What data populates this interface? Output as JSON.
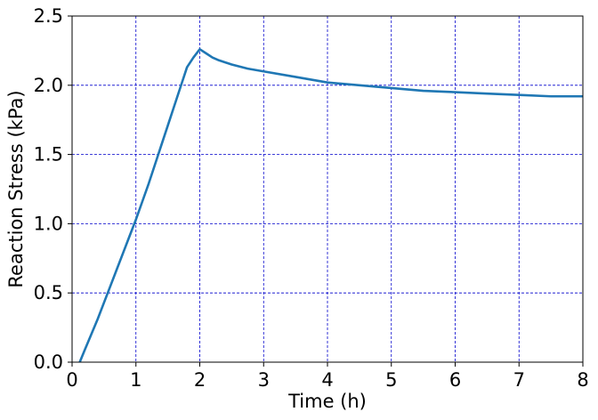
{
  "chart_data": {
    "type": "line",
    "title": "",
    "xlabel": "Time (h)",
    "ylabel": "Reaction Stress (kPa)",
    "xlim": [
      0,
      8
    ],
    "ylim": [
      0,
      2.5
    ],
    "xticks": [
      "0",
      "1",
      "2",
      "3",
      "4",
      "5",
      "6",
      "7",
      "8"
    ],
    "yticks": [
      "0.0",
      "0.5",
      "1.0",
      "1.5",
      "2.0",
      "2.5"
    ],
    "grid": true,
    "legend": "none",
    "colors": {
      "series": "#1f77b4",
      "grid": "#0000cc",
      "axis": "#000000"
    },
    "series": [
      {
        "x": [
          0.12,
          0.2,
          0.3,
          0.4,
          0.5,
          0.6,
          0.7,
          0.8,
          0.9,
          1.0,
          1.1,
          1.2,
          1.3,
          1.4,
          1.5,
          1.6,
          1.7,
          1.8,
          1.9,
          2.0,
          2.1,
          2.2,
          2.3,
          2.5,
          2.75,
          3.0,
          3.5,
          4.0,
          4.5,
          5.0,
          5.5,
          6.0,
          6.5,
          7.0,
          7.5,
          8.0
        ],
        "y": [
          0.0,
          0.09,
          0.2,
          0.31,
          0.43,
          0.55,
          0.67,
          0.79,
          0.91,
          1.03,
          1.16,
          1.29,
          1.43,
          1.57,
          1.71,
          1.85,
          1.99,
          2.13,
          2.2,
          2.26,
          2.23,
          2.2,
          2.18,
          2.15,
          2.12,
          2.1,
          2.06,
          2.02,
          2.0,
          1.98,
          1.96,
          1.95,
          1.94,
          1.93,
          1.92,
          1.92
        ]
      }
    ]
  }
}
